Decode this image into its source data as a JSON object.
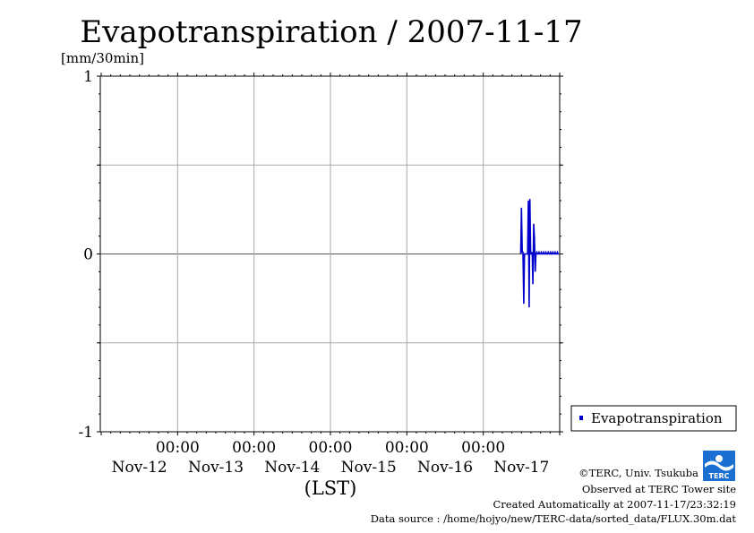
{
  "chart_data": {
    "type": "line",
    "title": "Evapotranspiration / 2007-11-17",
    "ylabel": "[mm/30min]",
    "xlabel": "(LST)",
    "ylim": [
      -1,
      1
    ],
    "y_ticks": [
      "1",
      "0",
      "-1"
    ],
    "y_tick_values": [
      1,
      0,
      -1
    ],
    "x_ticks": [
      {
        "time": "00:00",
        "date": "Nov-12",
        "day": 1
      },
      {
        "time": "00:00",
        "date": "Nov-13",
        "day": 2
      },
      {
        "time": "00:00",
        "date": "Nov-14",
        "day": 3
      },
      {
        "time": "00:00",
        "date": "Nov-15",
        "day": 4
      },
      {
        "time": "00:00",
        "date": "Nov-16",
        "day": 5
      },
      {
        "time": "00:00",
        "date": "Nov-17",
        "day": 6
      }
    ],
    "xlim_days": [
      0,
      6
    ],
    "grid": true,
    "legend_position": "right",
    "series": [
      {
        "name": "Evapotranspiration",
        "color": "#0000cc",
        "x_days": [
          5.49,
          5.5,
          5.51,
          5.52,
          5.53,
          5.54,
          5.55,
          5.56,
          5.57,
          5.58,
          5.59,
          5.6,
          5.61,
          5.62,
          5.63,
          5.64,
          5.65,
          5.66,
          5.67,
          5.68,
          5.69,
          5.7,
          5.71,
          5.72,
          5.73,
          5.74,
          5.75,
          5.76,
          5.77,
          5.78,
          5.79,
          5.8,
          5.81,
          5.82,
          5.83,
          5.84,
          5.85,
          5.86,
          5.87,
          5.88,
          5.89,
          5.9,
          5.91,
          5.92,
          5.93,
          5.94,
          5.95,
          5.96,
          5.97,
          5.98,
          5.99
        ],
        "values": [
          0.0,
          0.26,
          0.01,
          0.01,
          -0.28,
          0.0,
          0.0,
          0.0,
          0.0,
          0.0,
          0.3,
          -0.3,
          0.31,
          0.0,
          0.0,
          0.01,
          -0.17,
          0.17,
          0.09,
          -0.1,
          0.0,
          0.01,
          0.0,
          0.0,
          0.01,
          0.0,
          0.0,
          0.01,
          0.0,
          0.0,
          0.01,
          0.0,
          0.0,
          0.01,
          0.0,
          0.0,
          0.01,
          0.0,
          0.0,
          0.01,
          0.0,
          0.0,
          0.01,
          0.0,
          0.0,
          0.01,
          0.0,
          0.0,
          0.01,
          0.0,
          0.0
        ]
      }
    ]
  },
  "footer": {
    "copyright": "©TERC, Univ. Tsukuba",
    "observed": "Observed at TERC Tower site",
    "created": "Created Automatically at 2007-11-17/23:32:19",
    "source": "Data source : /home/hojyo/new/TERC-data/sorted_data/FLUX.30m.dat",
    "logo_text": "TERC"
  }
}
